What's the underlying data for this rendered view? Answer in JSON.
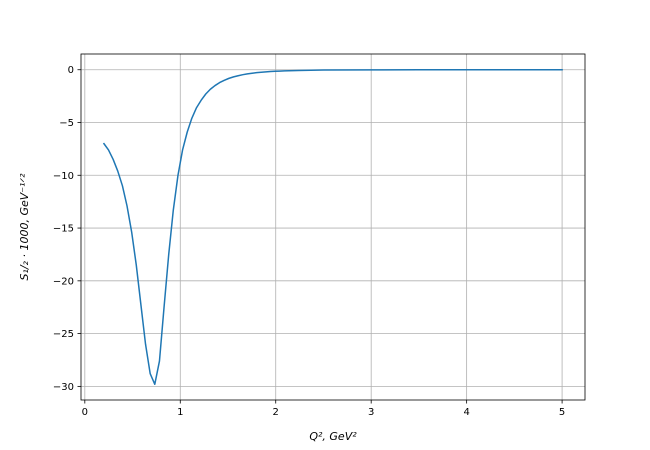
{
  "chart_data": {
    "type": "line",
    "xlabel": "Q², GeV²",
    "ylabel": "S₁/₂ · 1000, GeV⁻¹ᐟ²",
    "x": [
      0.2,
      0.248,
      0.297,
      0.345,
      0.394,
      0.442,
      0.491,
      0.539,
      0.588,
      0.636,
      0.685,
      0.733,
      0.782,
      0.83,
      0.879,
      0.927,
      0.976,
      1.024,
      1.073,
      1.121,
      1.17,
      1.218,
      1.267,
      1.315,
      1.364,
      1.412,
      1.461,
      1.509,
      1.558,
      1.606,
      1.655,
      1.703,
      1.752,
      1.8,
      1.848,
      1.897,
      1.945,
      1.994,
      2.042,
      2.091,
      2.139,
      2.188,
      2.236,
      2.5,
      3.0,
      3.5,
      4.0,
      4.5,
      5.0
    ],
    "series": [
      {
        "name": "S1/2",
        "color": "#1f77b4",
        "values": [
          -7.0,
          -7.6,
          -8.5,
          -9.6,
          -11.0,
          -12.9,
          -15.4,
          -18.5,
          -22.3,
          -26.0,
          -28.8,
          -29.8,
          -27.6,
          -22.5,
          -17.5,
          -13.3,
          -10.0,
          -7.6,
          -5.9,
          -4.6,
          -3.6,
          -2.9,
          -2.3,
          -1.85,
          -1.5,
          -1.22,
          -1.0,
          -0.82,
          -0.68,
          -0.57,
          -0.47,
          -0.39,
          -0.33,
          -0.28,
          -0.24,
          -0.2,
          -0.17,
          -0.15,
          -0.13,
          -0.11,
          -0.095,
          -0.08,
          -0.07,
          -0.03,
          -0.01,
          -0.004,
          -0.002,
          -0.001,
          -0.001
        ]
      }
    ],
    "xlim": [
      -0.04,
      5.24
    ],
    "ylim": [
      -31.29,
      1.49
    ],
    "xticks": [
      0,
      1,
      2,
      3,
      4,
      5
    ],
    "yticks": [
      0,
      {
        "value": -5,
        "label": "−5"
      },
      {
        "value": -10,
        "label": "−10"
      },
      {
        "value": -15,
        "label": "−15"
      },
      {
        "value": -20,
        "label": "−20"
      },
      {
        "value": -25,
        "label": "−25"
      },
      {
        "value": -30,
        "label": "−30"
      }
    ],
    "grid": true
  }
}
